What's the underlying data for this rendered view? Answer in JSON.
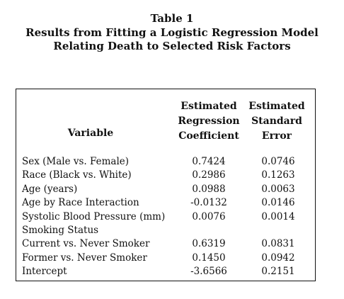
{
  "caption": {
    "line1": "Table 1",
    "line2": "Results from Fitting a Logistic Regression Model",
    "line3": "Relating Death to Selected Risk Factors"
  },
  "table": {
    "headers": {
      "variable": "Variable",
      "coef": [
        "Estimated",
        "Regression",
        "Coefficient"
      ],
      "se": [
        "Estimated",
        "Standard",
        "Error"
      ]
    },
    "rows": [
      {
        "variable": "Sex (Male vs. Female)",
        "coef": "0.7424",
        "se": "0.0746"
      },
      {
        "variable": "Race (Black vs. White)",
        "coef": "0.2986",
        "se": "0.1263"
      },
      {
        "variable": "Age (years)",
        "coef": "0.0988",
        "se": "0.0063"
      },
      {
        "variable": "Age by Race Interaction",
        "coef": "-0.0132",
        "se": "0.0146"
      },
      {
        "variable": "Systolic Blood Pressure (mm)",
        "coef": "0.0076",
        "se": "0.0014"
      },
      {
        "variable": "Smoking Status",
        "coef": "",
        "se": ""
      },
      {
        "variable": "Current vs. Never Smoker",
        "coef": "0.6319",
        "se": "0.0831"
      },
      {
        "variable": "Former vs. Never Smoker",
        "coef": "0.1450",
        "se": "0.0942"
      },
      {
        "variable": "Intercept",
        "coef": "-3.6566",
        "se": "0.2151"
      }
    ]
  }
}
